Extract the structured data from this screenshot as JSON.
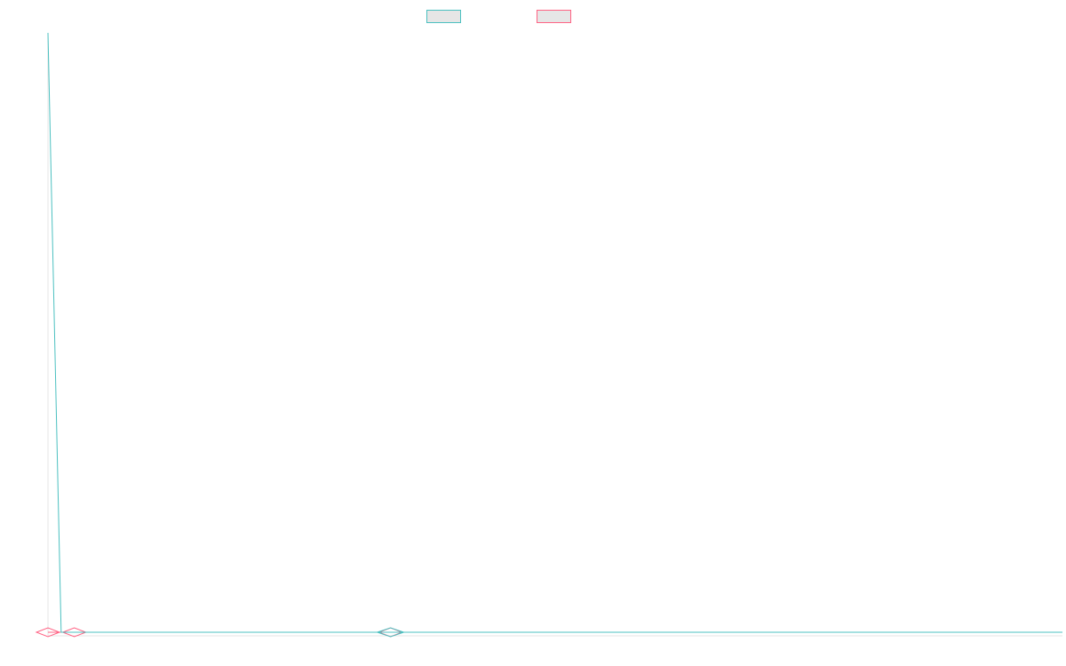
{
  "chart_data": {
    "type": "line",
    "title": "",
    "xlabel": "",
    "ylabel": "",
    "grid": false,
    "legend_placement": "top-center",
    "x": [
      0,
      1,
      2,
      3,
      4,
      5,
      6,
      7,
      8,
      9,
      10,
      11,
      12,
      13,
      14,
      15,
      16,
      17,
      18,
      19,
      20,
      21,
      22,
      23,
      24,
      25,
      26,
      27,
      28,
      29,
      30,
      31,
      32,
      33,
      34,
      35,
      36,
      37,
      38,
      39,
      40,
      41,
      42,
      43,
      44,
      45,
      46,
      47,
      48,
      49,
      50,
      51,
      52,
      53,
      54,
      55,
      56,
      57,
      58,
      59,
      60,
      61,
      62,
      63,
      64,
      65,
      66,
      67,
      68,
      69,
      70,
      71,
      72,
      73,
      74,
      75,
      76,
      77
    ],
    "xlim": [
      0,
      77
    ],
    "ylim": [
      0,
      1
    ],
    "series": [
      {
        "name": "",
        "color": "#4bc0c0",
        "values": [
          1.0,
          0.0,
          0.0,
          0.0,
          0.0,
          0.0,
          0.0,
          0.0,
          0.0,
          0.0,
          0.0,
          0.0,
          0.0,
          0.0,
          0.0,
          0.0,
          0.0,
          0.0,
          0.0,
          0.0,
          0.0,
          0.0,
          0.0,
          0.0,
          0.0,
          0.0,
          0.0,
          0.0,
          0.0,
          0.0,
          0.0,
          0.0,
          0.0,
          0.0,
          0.0,
          0.0,
          0.0,
          0.0,
          0.0,
          0.0,
          0.0,
          0.0,
          0.0,
          0.0,
          0.0,
          0.0,
          0.0,
          0.0,
          0.0,
          0.0,
          0.0,
          0.0,
          0.0,
          0.0,
          0.0,
          0.0,
          0.0,
          0.0,
          0.0,
          0.0,
          0.0,
          0.0,
          0.0,
          0.0,
          0.0,
          0.0,
          0.0,
          0.0,
          0.0,
          0.0,
          0.0,
          0.0,
          0.0,
          0.0,
          0.0,
          0.0,
          0.0,
          0.0
        ],
        "marker_indices": [
          26
        ]
      },
      {
        "name": "",
        "color": "#ff6384",
        "values": [
          0.0,
          0.0,
          0.0,
          0.0,
          0.0,
          0.0,
          0.0,
          0.0,
          0.0,
          0.0,
          0.0,
          0.0,
          0.0,
          0.0,
          0.0,
          0.0,
          0.0,
          0.0,
          0.0,
          0.0,
          0.0,
          0.0,
          0.0,
          0.0,
          0.0,
          0.0,
          0.0,
          0.0,
          0.0,
          0.0,
          0.0,
          0.0,
          0.0,
          0.0,
          0.0,
          0.0,
          0.0,
          0.0,
          0.0,
          0.0,
          0.0,
          0.0,
          0.0,
          0.0,
          0.0,
          0.0,
          0.0,
          0.0,
          0.0,
          0.0,
          0.0,
          0.0,
          0.0,
          0.0,
          0.0,
          0.0,
          0.0,
          0.0,
          0.0,
          0.0,
          0.0,
          0.0,
          0.0,
          0.0,
          0.0,
          0.0,
          0.0,
          0.0,
          0.0,
          0.0,
          0.0,
          0.0,
          0.0,
          0.0,
          0.0,
          0.0,
          0.0,
          0.0
        ],
        "marker_indices": [
          0,
          2,
          26
        ]
      }
    ]
  },
  "axis_color": "#e6e6e6"
}
